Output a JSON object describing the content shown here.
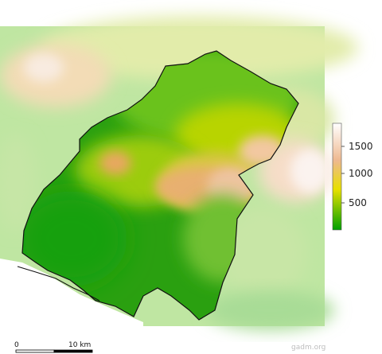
{
  "legend": {
    "labels": [
      "1500",
      "1000",
      "500"
    ],
    "colors": [
      "#ffffff",
      "#eeb88e",
      "#e8e000",
      "#00a000"
    ]
  },
  "scale_bar": {
    "label_start": "0",
    "label_end": "10 km"
  },
  "watermark": "gadm.org"
}
